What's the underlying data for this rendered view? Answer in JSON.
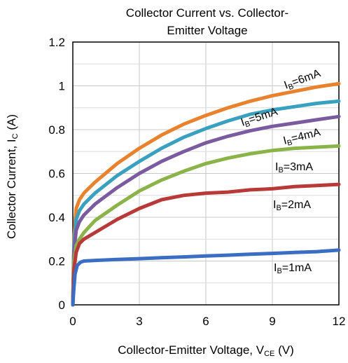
{
  "chart_data": {
    "type": "line",
    "title": "Collector Current vs. Collector-Emitter Voltage",
    "title_lines": [
      "Collector Current vs. Collector-",
      "Emitter Voltage"
    ],
    "xlabel": {
      "main": "Collector-Emitter Voltage, V",
      "sub": "CE",
      "unit": " (V)"
    },
    "ylabel": {
      "main": "Collector Current, I",
      "sub": "C",
      "unit": " (A)"
    },
    "xlim": [
      0,
      12
    ],
    "ylim": [
      0,
      1.2
    ],
    "xticks": [
      "0",
      "3",
      "6",
      "9",
      "12"
    ],
    "yticks": [
      "0",
      "0.2",
      "0.4",
      "0.6",
      "0.8",
      "1",
      "1.2"
    ],
    "grid": true,
    "series": [
      {
        "name": "IB=6mA",
        "label_main": "I",
        "label_sub": "B",
        "label_rest": "=6mA",
        "color": "#e8822e",
        "x": [
          0,
          0.05,
          0.15,
          0.3,
          0.5,
          1,
          2,
          3,
          4,
          5,
          6,
          7,
          8,
          9,
          10,
          11,
          12
        ],
        "y": [
          0,
          0.3,
          0.44,
          0.48,
          0.51,
          0.56,
          0.645,
          0.715,
          0.775,
          0.825,
          0.865,
          0.9,
          0.93,
          0.955,
          0.975,
          0.995,
          1.01
        ]
      },
      {
        "name": "IB=5mA",
        "label_main": "I",
        "label_sub": "B",
        "label_rest": "=5mA",
        "color": "#3aa0bf",
        "x": [
          0,
          0.05,
          0.15,
          0.3,
          0.5,
          1,
          2,
          3,
          4,
          5,
          6,
          7,
          8,
          9,
          10,
          11,
          12
        ],
        "y": [
          0,
          0.27,
          0.39,
          0.43,
          0.46,
          0.51,
          0.59,
          0.655,
          0.715,
          0.765,
          0.805,
          0.84,
          0.87,
          0.89,
          0.905,
          0.92,
          0.93
        ]
      },
      {
        "name": "IB=4mA",
        "label_main": "I",
        "label_sub": "B",
        "label_rest": "=4mA",
        "color": "#7b5ba0",
        "x": [
          0,
          0.05,
          0.15,
          0.3,
          0.5,
          1,
          2,
          3,
          4,
          5,
          6,
          7,
          8,
          9,
          10,
          11,
          12
        ],
        "y": [
          0,
          0.24,
          0.34,
          0.38,
          0.41,
          0.46,
          0.535,
          0.6,
          0.655,
          0.7,
          0.74,
          0.77,
          0.795,
          0.815,
          0.83,
          0.845,
          0.86
        ]
      },
      {
        "name": "IB=3mA",
        "label_main": "I",
        "label_sub": "B",
        "label_rest": "=3mA",
        "color": "#8ab34a",
        "x": [
          0,
          0.05,
          0.15,
          0.3,
          0.5,
          1,
          2,
          3,
          4,
          5,
          6,
          7,
          8,
          9,
          10,
          11,
          12
        ],
        "y": [
          0,
          0.2,
          0.27,
          0.3,
          0.33,
          0.385,
          0.455,
          0.52,
          0.57,
          0.61,
          0.645,
          0.67,
          0.69,
          0.705,
          0.715,
          0.72,
          0.725
        ]
      },
      {
        "name": "IB=2mA",
        "label_main": "I",
        "label_sub": "B",
        "label_rest": "=2mA",
        "color": "#b83a38",
        "x": [
          0,
          0.05,
          0.15,
          0.3,
          0.5,
          1,
          2,
          3,
          4,
          5,
          6,
          7,
          8,
          9,
          10,
          11,
          12
        ],
        "y": [
          0,
          0.16,
          0.24,
          0.28,
          0.3,
          0.33,
          0.39,
          0.44,
          0.48,
          0.5,
          0.51,
          0.515,
          0.525,
          0.53,
          0.54,
          0.545,
          0.55
        ]
      },
      {
        "name": "IB=1mA",
        "label_main": "I",
        "label_sub": "B",
        "label_rest": "=1mA",
        "color": "#3b6ec2",
        "x": [
          0,
          0.05,
          0.1,
          0.2,
          0.35,
          0.5,
          1,
          2,
          3,
          4,
          5,
          6,
          7,
          8,
          9,
          10,
          11,
          12
        ],
        "y": [
          0,
          0.08,
          0.14,
          0.18,
          0.195,
          0.2,
          0.203,
          0.207,
          0.211,
          0.215,
          0.219,
          0.223,
          0.227,
          0.231,
          0.235,
          0.239,
          0.243,
          0.25
        ]
      }
    ]
  }
}
